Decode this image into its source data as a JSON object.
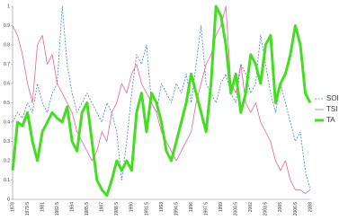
{
  "chart_data": {
    "type": "line",
    "categories": [
      "1978",
      null,
      null,
      "1979.5",
      null,
      null,
      "1981",
      null,
      null,
      "1982.5",
      null,
      null,
      "1984",
      null,
      null,
      "1985.5",
      null,
      null,
      "1987",
      null,
      null,
      "1988.5",
      null,
      null,
      "1990",
      null,
      null,
      "1991.5",
      null,
      null,
      "1993",
      null,
      null,
      "1994.5",
      null,
      null,
      "1996",
      null,
      null,
      "1997.5",
      null,
      null,
      "1999",
      null,
      null,
      "2000.5",
      null,
      null,
      "2002",
      null,
      null,
      "2003.5",
      null,
      null,
      "2005",
      null,
      null,
      "2006.5",
      null,
      null,
      "2008"
    ],
    "series": [
      {
        "name": "SOI",
        "color": "#4a7fc1",
        "style": "dashed",
        "values": [
          0.4,
          0.45,
          0.42,
          0.5,
          0.45,
          0.6,
          0.5,
          0.45,
          0.55,
          0.6,
          1.0,
          0.7,
          0.55,
          0.45,
          0.5,
          0.55,
          0.5,
          0.45,
          0.4,
          0.5,
          0.45,
          0.35,
          0.1,
          0.3,
          0.55,
          0.75,
          0.7,
          0.8,
          0.5,
          0.45,
          0.6,
          0.55,
          0.5,
          0.6,
          0.55,
          0.65,
          0.5,
          0.7,
          0.9,
          0.6,
          0.55,
          0.5,
          0.6,
          0.65,
          0.55,
          0.5,
          0.7,
          0.65,
          0.55,
          0.6,
          0.85,
          0.7,
          0.55,
          0.45,
          0.6,
          0.5,
          0.4,
          0.3,
          0.35,
          0.15,
          0.05
        ]
      },
      {
        "name": "TSI",
        "color": "#d9698f",
        "style": "solid",
        "values": [
          0.9,
          0.85,
          0.75,
          0.6,
          0.5,
          0.8,
          0.85,
          0.7,
          0.75,
          0.6,
          0.55,
          0.5,
          0.45,
          0.35,
          0.3,
          0.25,
          0.2,
          0.25,
          0.35,
          0.3,
          0.45,
          0.5,
          0.6,
          0.55,
          0.65,
          0.7,
          0.6,
          0.55,
          0.5,
          0.45,
          0.35,
          0.3,
          0.25,
          0.2,
          0.25,
          0.3,
          0.35,
          0.5,
          0.6,
          0.7,
          0.75,
          0.85,
          0.9,
          1.0,
          0.6,
          0.55,
          0.7,
          0.5,
          0.45,
          0.5,
          0.4,
          0.35,
          0.3,
          0.2,
          0.15,
          0.2,
          0.1,
          0.05,
          0.05,
          0.03,
          0.05
        ]
      },
      {
        "name": "TA",
        "color": "#44dd22",
        "style": "thick",
        "values": [
          0.15,
          0.4,
          0.38,
          0.45,
          0.3,
          0.2,
          0.35,
          0.4,
          0.45,
          0.42,
          0.4,
          0.48,
          0.3,
          0.25,
          0.45,
          0.5,
          0.3,
          0.1,
          0.05,
          0.02,
          0.1,
          0.2,
          0.15,
          0.2,
          0.15,
          0.45,
          0.55,
          0.35,
          0.55,
          0.5,
          0.4,
          0.25,
          0.2,
          0.3,
          0.4,
          0.5,
          0.65,
          0.55,
          0.45,
          0.35,
          0.6,
          1.0,
          0.95,
          0.8,
          0.55,
          0.65,
          0.45,
          0.55,
          0.75,
          0.7,
          0.6,
          0.8,
          0.85,
          0.5,
          0.6,
          0.65,
          0.75,
          0.9,
          0.8,
          0.55,
          0.5
        ]
      }
    ],
    "ylim": [
      0,
      1
    ],
    "yticks": [
      0,
      0.1,
      0.2,
      0.3,
      0.4,
      0.5,
      0.6,
      0.7,
      0.8,
      0.9,
      1
    ]
  }
}
